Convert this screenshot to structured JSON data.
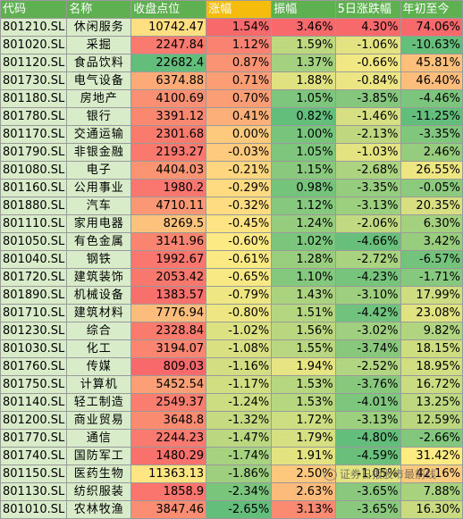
{
  "chart_data": {
    "type": "table",
    "columns": [
      "代码",
      "名称",
      "收盘点位",
      "涨幅",
      "振幅",
      "5日涨跌幅",
      "年初至今"
    ],
    "sorted_column": "涨幅",
    "rows": [
      [
        "801210.SL",
        "休闲服务",
        "10742.47",
        "1.54%",
        "3.46%",
        "4.30%",
        "74.06%"
      ],
      [
        "801020.SL",
        "采掘",
        "2247.84",
        "1.12%",
        "1.59%",
        "-1.06%",
        "-10.63%"
      ],
      [
        "801120.SL",
        "食品饮料",
        "22682.4",
        "0.87%",
        "1.37%",
        "-0.66%",
        "45.81%"
      ],
      [
        "801730.SL",
        "电气设备",
        "6374.88",
        "0.71%",
        "1.88%",
        "-0.84%",
        "46.40%"
      ],
      [
        "801180.SL",
        "房地产",
        "4100.69",
        "0.70%",
        "1.05%",
        "-3.85%",
        "-4.46%"
      ],
      [
        "801780.SL",
        "银行",
        "3391.12",
        "0.41%",
        "0.82%",
        "-1.46%",
        "-11.25%"
      ],
      [
        "801170.SL",
        "交通运输",
        "2301.68",
        "0.00%",
        "1.00%",
        "-2.13%",
        "-3.35%"
      ],
      [
        "801790.SL",
        "非银金融",
        "2193.27",
        "-0.03%",
        "1.05%",
        "-1.03%",
        "2.46%"
      ],
      [
        "801080.SL",
        "电子",
        "4404.03",
        "-0.21%",
        "1.15%",
        "-2.68%",
        "26.55%"
      ],
      [
        "801160.SL",
        "公用事业",
        "1980.2",
        "-0.29%",
        "0.98%",
        "-3.35%",
        "-0.05%"
      ],
      [
        "801880.SL",
        "汽车",
        "4710.11",
        "-0.32%",
        "1.12%",
        "-3.13%",
        "20.35%"
      ],
      [
        "801110.SL",
        "家用电器",
        "8269.5",
        "-0.45%",
        "1.24%",
        "-2.06%",
        "6.30%"
      ],
      [
        "801050.SL",
        "有色金属",
        "3141.96",
        "-0.60%",
        "1.02%",
        "-4.66%",
        "3.42%"
      ],
      [
        "801040.SL",
        "钢铁",
        "1992.67",
        "-0.61%",
        "1.28%",
        "-2.72%",
        "-6.57%"
      ],
      [
        "801720.SL",
        "建筑装饰",
        "2053.42",
        "-0.65%",
        "1.10%",
        "-4.23%",
        "-1.71%"
      ],
      [
        "801890.SL",
        "机械设备",
        "1383.57",
        "-0.79%",
        "1.43%",
        "-3.10%",
        "17.99%"
      ],
      [
        "801710.SL",
        "建筑材料",
        "7776.94",
        "-0.80%",
        "1.51%",
        "-4.42%",
        "23.08%"
      ],
      [
        "801230.SL",
        "综合",
        "2328.84",
        "-1.02%",
        "1.56%",
        "-3.02%",
        "9.82%"
      ],
      [
        "801030.SL",
        "化工",
        "3194.07",
        "-1.08%",
        "1.55%",
        "-3.74%",
        "18.15%"
      ],
      [
        "801760.SL",
        "传媒",
        "809.03",
        "-1.16%",
        "1.94%",
        "-2.52%",
        "18.95%"
      ],
      [
        "801750.SL",
        "计算机",
        "5452.54",
        "-1.17%",
        "1.53%",
        "-3.76%",
        "16.72%"
      ],
      [
        "801140.SL",
        "轻工制造",
        "2549.37",
        "-1.24%",
        "1.53%",
        "-4.01%",
        "13.25%"
      ],
      [
        "801200.SL",
        "商业贸易",
        "3648.8",
        "-1.32%",
        "1.72%",
        "-3.13%",
        "12.59%"
      ],
      [
        "801770.SL",
        "通信",
        "2244.23",
        "-1.47%",
        "1.79%",
        "-4.80%",
        "-2.66%"
      ],
      [
        "801740.SL",
        "国防军工",
        "1480.29",
        "-1.74%",
        "1.91%",
        "-4.59%",
        "31.42%"
      ],
      [
        "801150.SL",
        "医药生物",
        "11363.13",
        "-1.86%",
        "2.50%",
        "-1.05%",
        "42.16%"
      ],
      [
        "801130.SL",
        "纺织服装",
        "1858.9",
        "-2.34%",
        "2.63%",
        "-3.65%",
        "7.88%"
      ],
      [
        "801010.SL",
        "农林牧渔",
        "3847.46",
        "-2.65%",
        "3.13%",
        "-3.65%",
        "16.30%"
      ]
    ]
  },
  "watermark": {
    "text": "证券日报股市最前线"
  }
}
